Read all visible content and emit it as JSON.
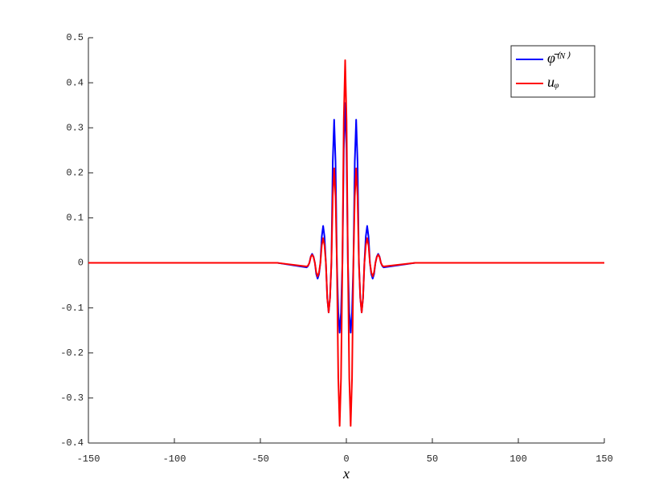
{
  "chart_data": {
    "type": "line",
    "x_label": "x",
    "x": [
      -150,
      -40,
      -23.1,
      -22.3,
      -21.5,
      -20.7,
      -19.9,
      -19.1,
      -18.3,
      -17.5,
      -16.7,
      -15.9,
      -15.1,
      -14.3,
      -13.5,
      -12.7,
      -11.9,
      -11.1,
      -10.3,
      -9.5,
      -8.7,
      -7.9,
      -7.1,
      -6.3,
      -5.5,
      -4.7,
      -3.9,
      -3.1,
      -2.3,
      -1.5,
      -0.7,
      0.1,
      0.9,
      1.7,
      2.5,
      3.3,
      4.1,
      4.9,
      5.7,
      6.5,
      7.3,
      8.1,
      8.9,
      9.7,
      10.5,
      11.3,
      12.1,
      12.9,
      13.7,
      14.5,
      15.3,
      16.1,
      16.9,
      17.7,
      18.5,
      19.3,
      20.1,
      20.9,
      21.7,
      40,
      150
    ],
    "series": [
      {
        "name": "φ̄⁽ᴺ⁾",
        "color": "#0000ff",
        "values": [
          0,
          0,
          -0.01,
          -0.007,
          0,
          0.014,
          0.02,
          0.014,
          0,
          -0.025,
          -0.035,
          -0.025,
          0,
          0.058,
          0.082,
          0.058,
          0,
          -0.078,
          -0.11,
          -0.078,
          0,
          0.225,
          0.318,
          0.225,
          0,
          -0.11,
          -0.155,
          -0.11,
          0,
          0.251,
          0.355,
          0.251,
          0,
          -0.11,
          -0.155,
          -0.11,
          0,
          0.225,
          0.318,
          0.225,
          0,
          -0.078,
          -0.11,
          -0.078,
          0,
          0.058,
          0.082,
          0.058,
          0,
          -0.025,
          -0.035,
          -0.025,
          0,
          0.014,
          0.02,
          0.014,
          0,
          -0.007,
          -0.01,
          0,
          0
        ]
      },
      {
        "name": "uᵩ",
        "color": "#ff0000",
        "values": [
          0,
          0,
          -0.008,
          -0.006,
          0,
          0.013,
          0.018,
          0.013,
          0,
          -0.021,
          -0.03,
          -0.021,
          0,
          0.039,
          0.055,
          0.039,
          0,
          -0.078,
          -0.11,
          -0.078,
          0,
          0.148,
          0.21,
          0.148,
          0,
          -0.256,
          -0.362,
          -0.256,
          0,
          0.318,
          0.45,
          0.318,
          0,
          -0.256,
          -0.362,
          -0.256,
          0,
          0.148,
          0.21,
          0.148,
          0,
          -0.078,
          -0.11,
          -0.078,
          0,
          0.039,
          0.055,
          0.039,
          0,
          -0.021,
          -0.03,
          -0.021,
          0,
          0.013,
          0.018,
          0.013,
          0,
          -0.006,
          -0.008,
          0,
          0
        ]
      }
    ],
    "xlim": [
      -150,
      150
    ],
    "xticks": [
      -150,
      -100,
      -50,
      0,
      50,
      100,
      150
    ],
    "ylim": [
      -0.4,
      0.5
    ],
    "yticks": [
      -0.4,
      -0.3,
      -0.2,
      -0.1,
      0,
      0.1,
      0.2,
      0.3,
      0.4,
      0.5
    ],
    "grid": false,
    "legend": "upper right"
  }
}
